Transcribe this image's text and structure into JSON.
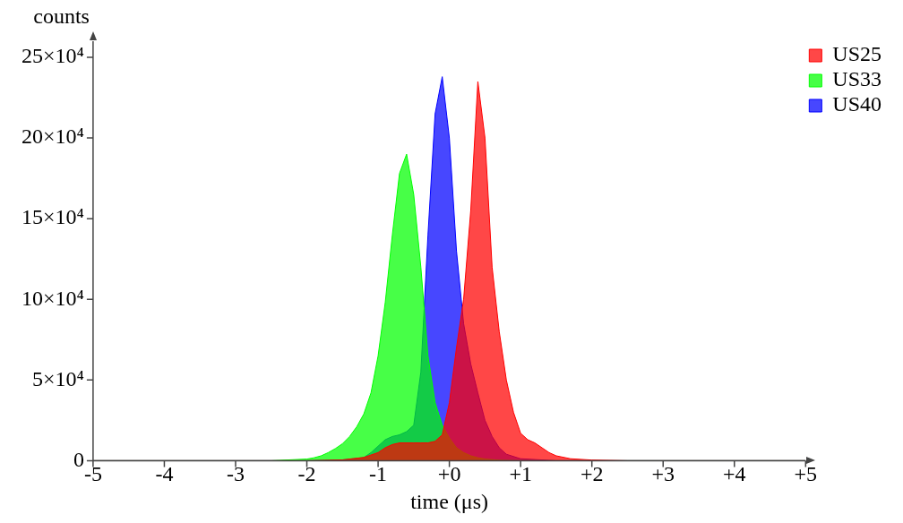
{
  "chart_data": {
    "type": "area",
    "xlabel": "time (μs)",
    "ylabel": "counts",
    "xlim": [
      -5,
      5
    ],
    "ylim": [
      0,
      260000
    ],
    "xticks": [
      -5,
      -4,
      -3,
      -2,
      -1,
      {
        "value": 0,
        "label": "+0"
      },
      {
        "value": 1,
        "label": "+1"
      },
      {
        "value": 2,
        "label": "+2"
      },
      {
        "value": 3,
        "label": "+3"
      },
      {
        "value": 4,
        "label": "+4"
      },
      {
        "value": 5,
        "label": "+5"
      }
    ],
    "yticks": [
      0,
      {
        "value": 50000,
        "label": "5×10⁴"
      },
      {
        "value": 100000,
        "label": "10×10⁴"
      },
      {
        "value": 150000,
        "label": "15×10⁴"
      },
      {
        "value": 200000,
        "label": "20×10⁴"
      },
      {
        "value": 250000,
        "label": "25×10⁴"
      }
    ],
    "grid": false,
    "legend": "top right",
    "marker": "none",
    "series": [
      {
        "name": "US25",
        "color": "#ff0000",
        "x": [
          -5,
          -2,
          -1.5,
          -1.2,
          -1,
          -0.9,
          -0.8,
          -0.7,
          -0.6,
          -0.5,
          -0.4,
          -0.3,
          -0.2,
          -0.1,
          0,
          0.1,
          0.2,
          0.3,
          0.4,
          0.5,
          0.6,
          0.7,
          0.8,
          0.9,
          1,
          1.1,
          1.2,
          1.3,
          1.4,
          1.5,
          1.7,
          2,
          2.5,
          5
        ],
        "values": [
          0,
          0,
          500,
          2000,
          5000,
          8000,
          10000,
          11000,
          11000,
          11000,
          11000,
          11000,
          12000,
          16000,
          36000,
          70000,
          100000,
          155000,
          235000,
          200000,
          120000,
          80000,
          50000,
          30000,
          17000,
          13000,
          11000,
          8000,
          5000,
          3000,
          1200,
          400,
          0,
          0
        ]
      },
      {
        "name": "US33",
        "color": "#00ff00",
        "x": [
          -5,
          -2.5,
          -2,
          -1.9,
          -1.8,
          -1.7,
          -1.6,
          -1.5,
          -1.4,
          -1.3,
          -1.2,
          -1.1,
          -1,
          -0.9,
          -0.8,
          -0.7,
          -0.6,
          -0.5,
          -0.4,
          -0.3,
          -0.2,
          -0.1,
          0,
          0.1,
          0.2,
          0.3,
          0.4,
          0.5,
          0.7,
          1,
          5
        ],
        "values": [
          0,
          0,
          1000,
          1800,
          3000,
          5000,
          7500,
          10500,
          15000,
          21000,
          29000,
          42000,
          65000,
          98000,
          140000,
          178000,
          190000,
          165000,
          120000,
          65000,
          36000,
          22000,
          14000,
          8000,
          5000,
          3000,
          1800,
          1000,
          300,
          0,
          0
        ]
      },
      {
        "name": "US40",
        "color": "#0000ff",
        "x": [
          -5,
          -2,
          -1.5,
          -1.2,
          -1.1,
          -1,
          -0.9,
          -0.8,
          -0.7,
          -0.6,
          -0.5,
          -0.4,
          -0.3,
          -0.2,
          -0.1,
          0,
          0.1,
          0.2,
          0.3,
          0.4,
          0.5,
          0.6,
          0.7,
          0.8,
          1,
          1.5,
          5
        ],
        "values": [
          0,
          0,
          500,
          2000,
          5000,
          9000,
          13000,
          15000,
          16000,
          18000,
          22000,
          55000,
          140000,
          215000,
          238000,
          200000,
          130000,
          85000,
          60000,
          42000,
          25000,
          15000,
          8000,
          4000,
          1200,
          0,
          0
        ]
      }
    ]
  }
}
